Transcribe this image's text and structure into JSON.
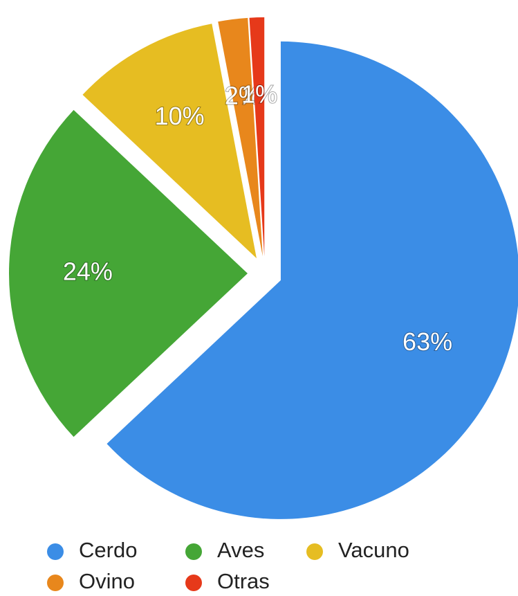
{
  "chart_data": {
    "type": "pie",
    "categories": [
      "Cerdo",
      "Aves",
      "Vacuno",
      "Ovino",
      "Otras"
    ],
    "values": [
      63,
      24,
      10,
      2,
      1
    ],
    "value_labels": [
      "63%",
      "24%",
      "10%",
      "2%",
      "1%"
    ],
    "colors": [
      "#3b8de6",
      "#45a636",
      "#e6bd22",
      "#e8871c",
      "#e6391a"
    ],
    "legend": "bottom"
  }
}
